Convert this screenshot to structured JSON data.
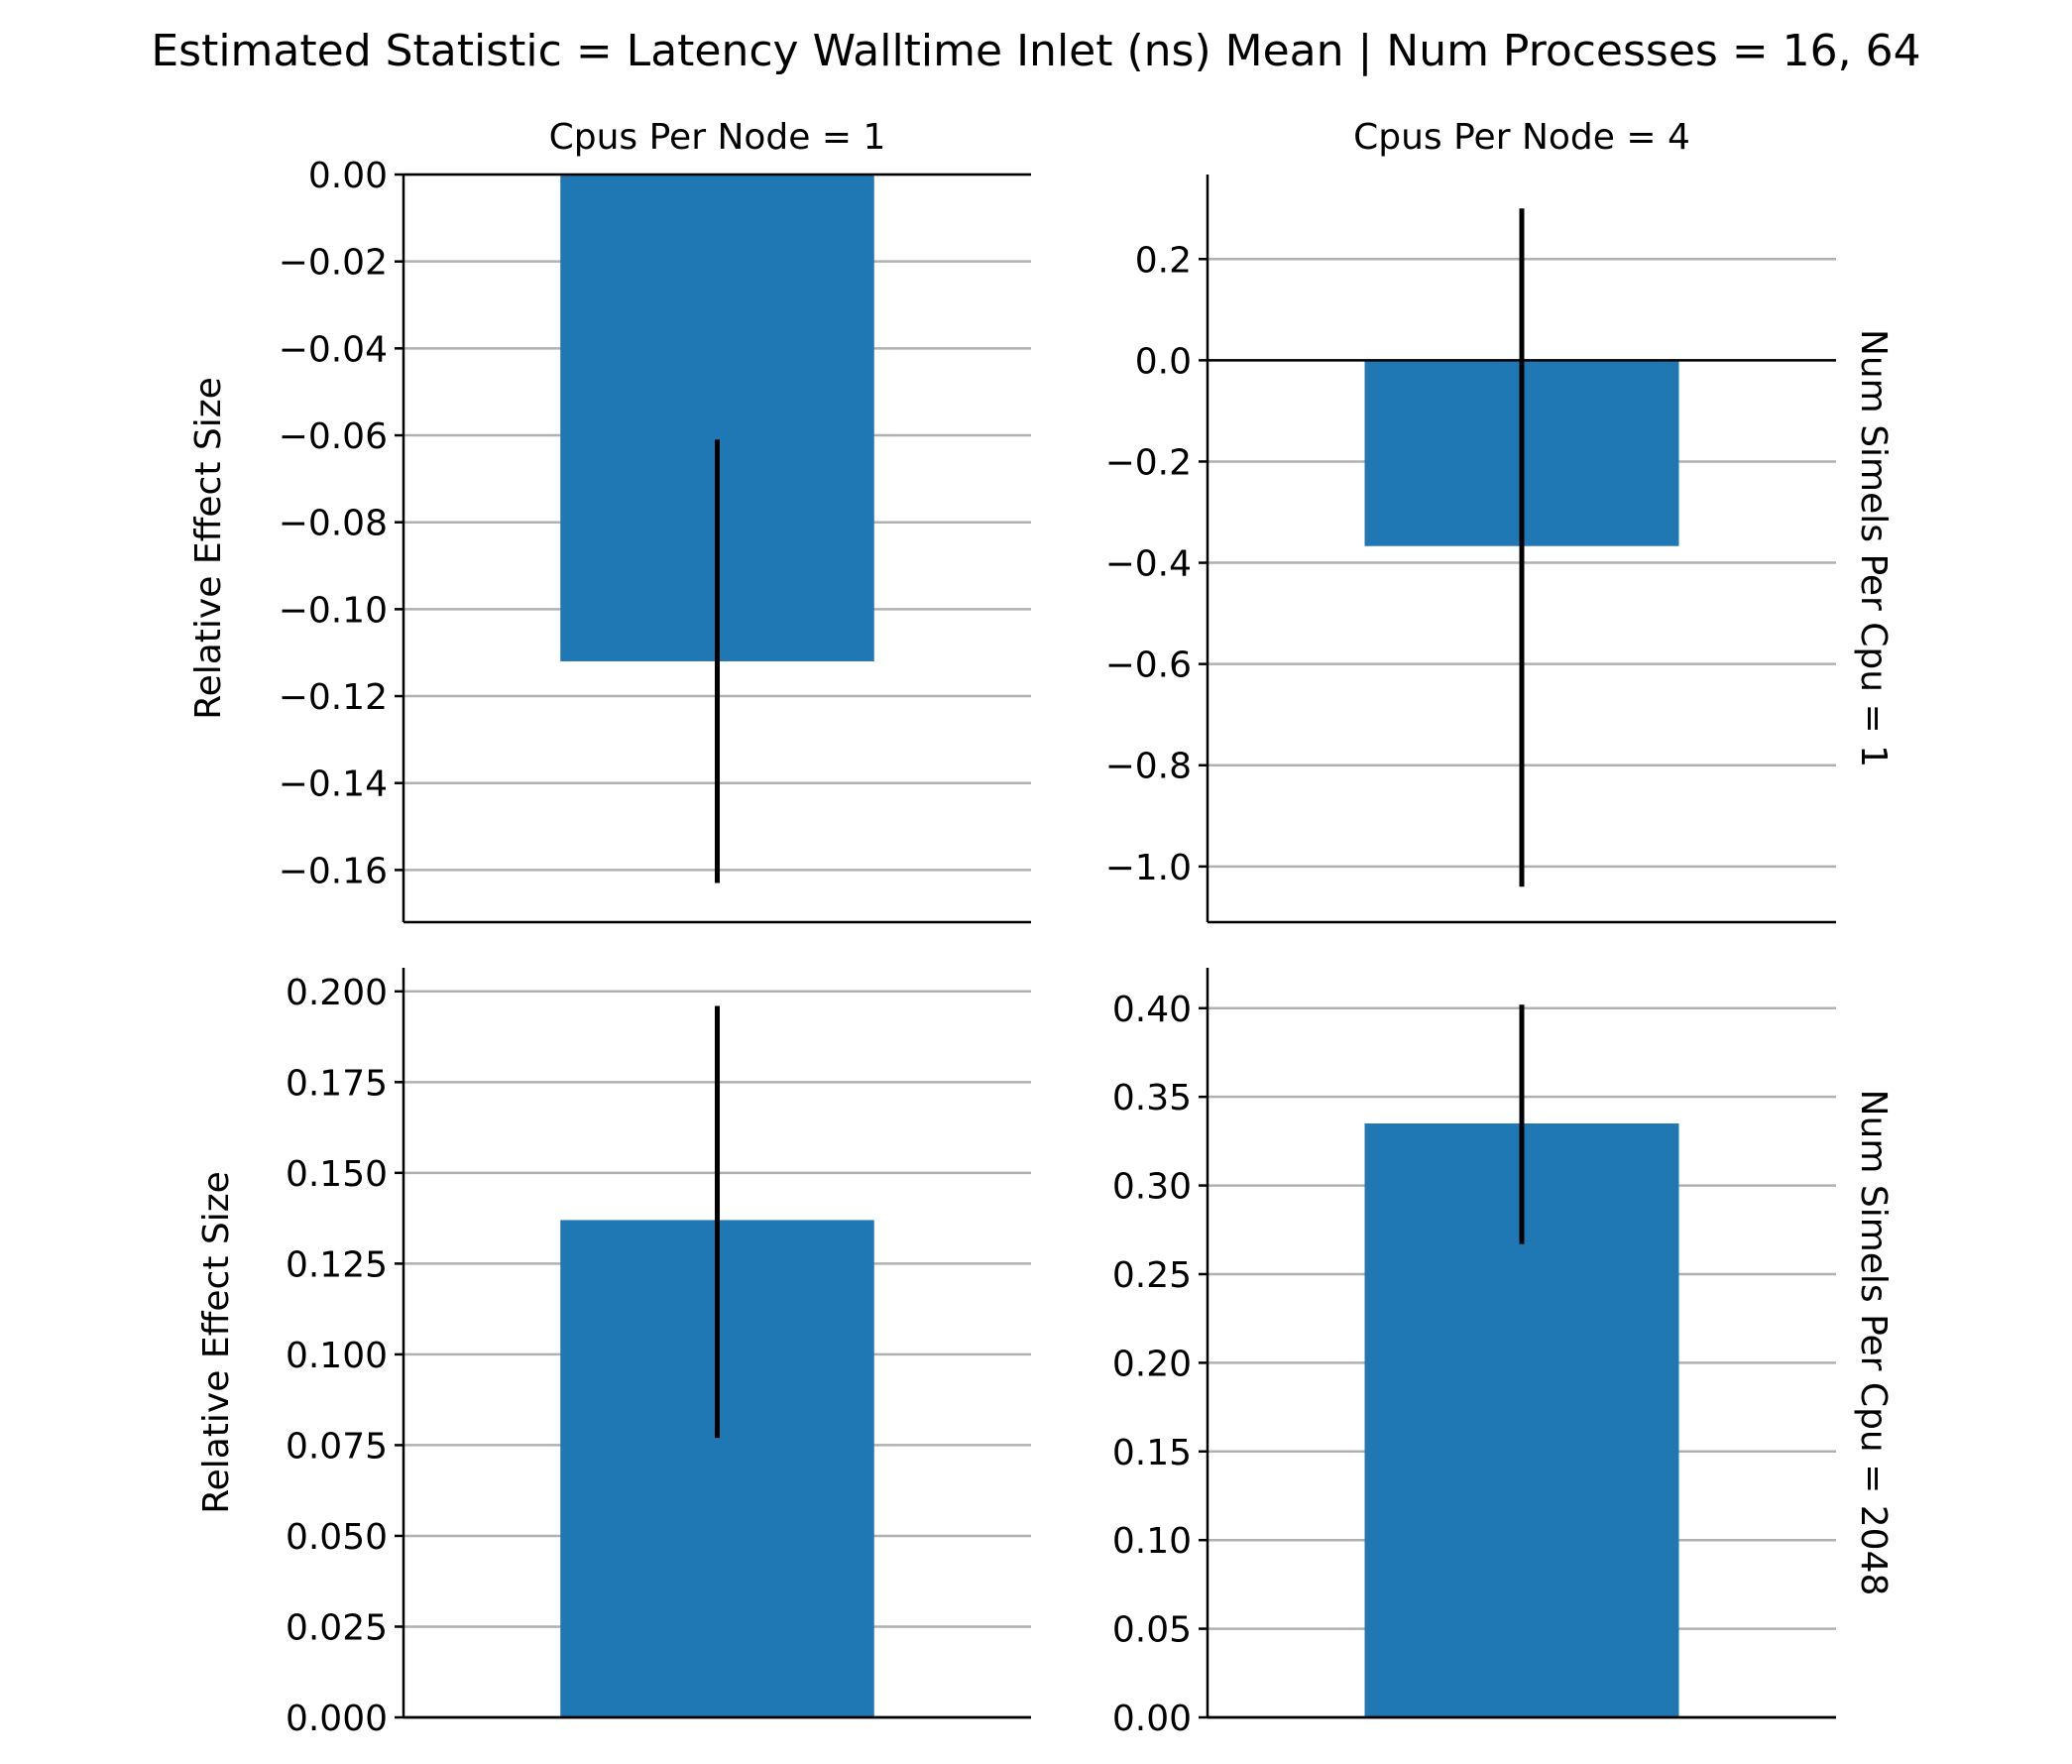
{
  "figure": {
    "title": "Estimated Statistic = Latency Walltime Inlet (ns) Mean | Num Processes = 16, 64",
    "ylabel": "Relative Effect Size",
    "bar_color": "#1f77b4",
    "errorbar_color": "#000000",
    "grid_color": "#b0b0b0"
  },
  "chart_data": [
    {
      "type": "bar",
      "col_title": "Cpus Per Node = 1",
      "row_label": "",
      "ylabel": "Relative Effect Size",
      "categories": [
        ""
      ],
      "values": [
        -0.112
      ],
      "error_low": [
        -0.163
      ],
      "error_high": [
        -0.061
      ],
      "ylim": [
        -0.172,
        0.0
      ],
      "yticks": [
        0.0,
        -0.02,
        -0.04,
        -0.06,
        -0.08,
        -0.1,
        -0.12,
        -0.14,
        -0.16
      ],
      "ytick_labels": [
        "0.00",
        "−0.02",
        "−0.04",
        "−0.06",
        "−0.08",
        "−0.10",
        "−0.12",
        "−0.14",
        "−0.16"
      ],
      "grid": true
    },
    {
      "type": "bar",
      "col_title": "Cpus Per Node = 4",
      "row_label": "Num Simels Per Cpu = 1",
      "ylabel": "",
      "categories": [
        ""
      ],
      "values": [
        -0.367
      ],
      "error_low": [
        -1.04
      ],
      "error_high": [
        0.3
      ],
      "ylim": [
        -1.11,
        0.367
      ],
      "yticks": [
        0.2,
        0.0,
        -0.2,
        -0.4,
        -0.6,
        -0.8,
        -1.0
      ],
      "ytick_labels": [
        "0.2",
        "0.0",
        "−0.2",
        "−0.4",
        "−0.6",
        "−0.8",
        "−1.0"
      ],
      "grid": true
    },
    {
      "type": "bar",
      "col_title": "",
      "row_label": "",
      "ylabel": "Relative Effect Size",
      "categories": [
        ""
      ],
      "values": [
        0.137
      ],
      "error_low": [
        0.077
      ],
      "error_high": [
        0.196
      ],
      "ylim": [
        0.0,
        0.2065
      ],
      "yticks": [
        0.0,
        0.025,
        0.05,
        0.075,
        0.1,
        0.125,
        0.15,
        0.175,
        0.2
      ],
      "ytick_labels": [
        "0.000",
        "0.025",
        "0.050",
        "0.075",
        "0.100",
        "0.125",
        "0.150",
        "0.175",
        "0.200"
      ],
      "grid": true
    },
    {
      "type": "bar",
      "col_title": "",
      "row_label": "Num Simels Per Cpu = 2048",
      "ylabel": "",
      "categories": [
        ""
      ],
      "values": [
        0.335
      ],
      "error_low": [
        0.267
      ],
      "error_high": [
        0.402
      ],
      "ylim": [
        0.0,
        0.4228
      ],
      "yticks": [
        0.0,
        0.05,
        0.1,
        0.15,
        0.2,
        0.25,
        0.3,
        0.35,
        0.4
      ],
      "ytick_labels": [
        "0.00",
        "0.05",
        "0.10",
        "0.15",
        "0.20",
        "0.25",
        "0.30",
        "0.35",
        "0.40"
      ],
      "grid": true
    }
  ]
}
